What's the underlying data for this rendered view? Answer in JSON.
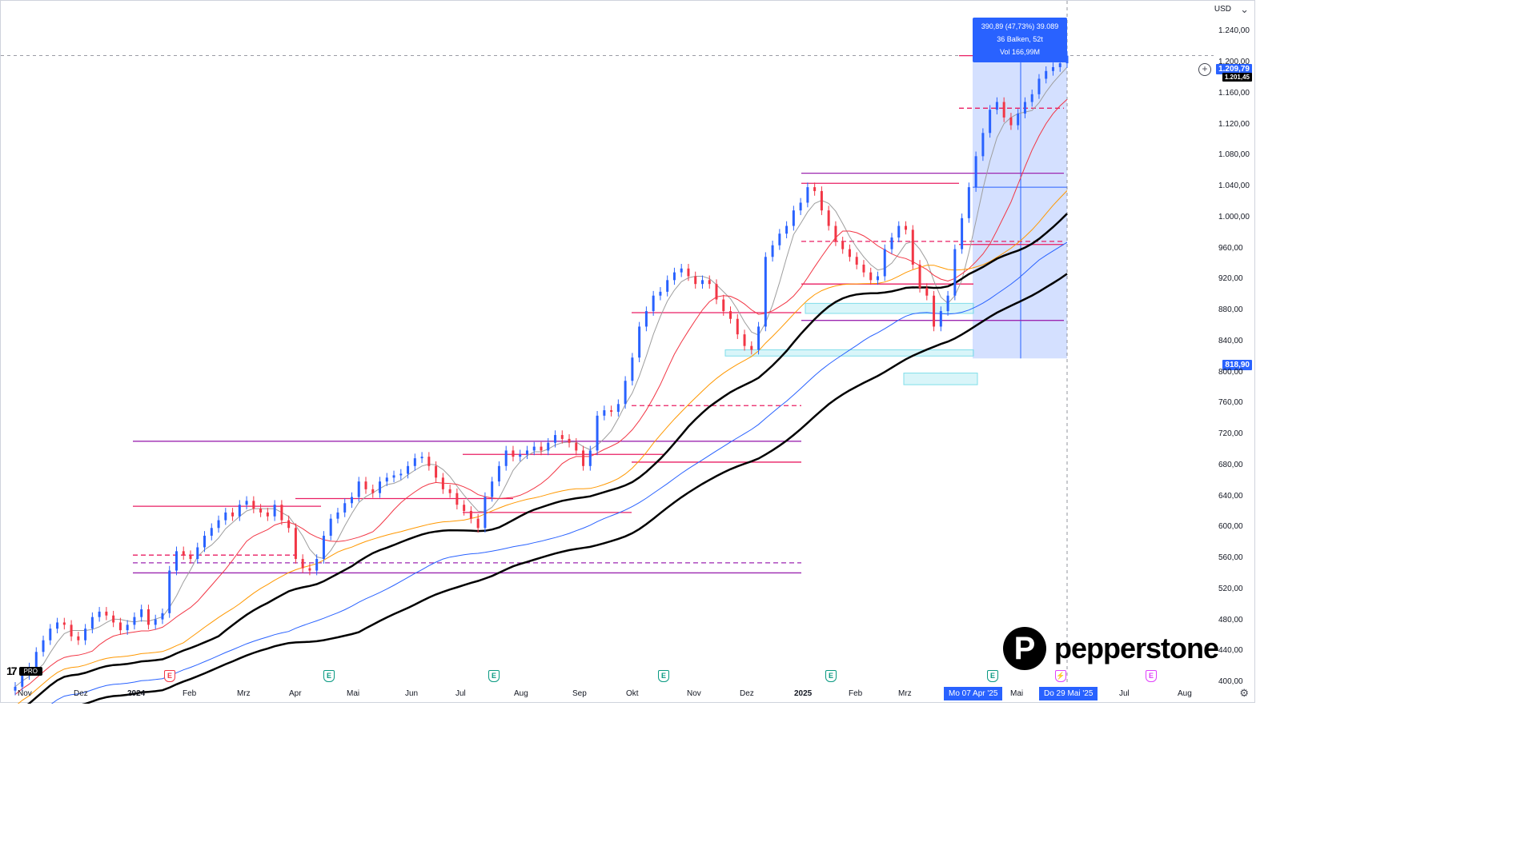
{
  "currency": "USD",
  "chart_data": {
    "type": "candlestick",
    "y_ticks": [
      "1.240,00",
      "1.200,00",
      "1.160,00",
      "1.120,00",
      "1.080,00",
      "1.040,00",
      "1.000,00",
      "960,00",
      "920,00",
      "880,00",
      "840,00",
      "800,00",
      "760,00",
      "720,00",
      "680,00",
      "640,00",
      "600,00",
      "560,00",
      "520,00",
      "480,00",
      "440,00",
      "400,00"
    ],
    "x_ticks": [
      "Nov",
      "Dez",
      "2024",
      "Feb",
      "Mrz",
      "Apr",
      "Mai",
      "Jun",
      "Jul",
      "Aug",
      "Sep",
      "Okt",
      "Nov",
      "Dez",
      "2025",
      "Feb",
      "Mrz",
      "Mai",
      "Jul",
      "Aug"
    ],
    "ylim": [
      400,
      1260
    ],
    "closes": [
      395,
      410,
      420,
      440,
      455,
      470,
      478,
      475,
      460,
      455,
      470,
      485,
      492,
      487,
      478,
      468,
      475,
      485,
      495,
      475,
      482,
      490,
      545,
      570,
      565,
      560,
      575,
      590,
      600,
      610,
      620,
      615,
      630,
      635,
      625,
      620,
      615,
      630,
      610,
      600,
      560,
      548,
      545,
      560,
      590,
      612,
      620,
      632,
      640,
      660,
      650,
      645,
      660,
      665,
      668,
      670,
      680,
      690,
      692,
      680,
      665,
      650,
      645,
      630,
      622,
      612,
      600,
      640,
      660,
      680,
      700,
      692,
      695,
      700,
      705,
      700,
      710,
      720,
      715,
      710,
      700,
      680,
      700,
      745,
      752,
      750,
      760,
      790,
      820,
      860,
      880,
      900,
      905,
      920,
      930,
      935,
      925,
      915,
      920,
      915,
      895,
      880,
      870,
      850,
      835,
      830,
      860,
      950,
      965,
      980,
      990,
      1010,
      1020,
      1040,
      1035,
      1010,
      990,
      970,
      960,
      950,
      940,
      930,
      920,
      925,
      960,
      975,
      990,
      985,
      940,
      910,
      900,
      860,
      880,
      900,
      960,
      1000,
      1040,
      1080,
      1110,
      1140,
      1150,
      1130,
      1120,
      1135,
      1150,
      1160,
      1180,
      1190,
      1195,
      1200,
      1209.79
    ],
    "current_price": "1.209,79",
    "current_price_overlap": "1.201,45",
    "low_marker": "818,90",
    "measure": {
      "line1": "390,89 (47,73%) 39.089",
      "line2": "36 Balken, 52t",
      "line3": "Vol 166,99M",
      "from": 818.9,
      "to": 1209.79
    },
    "horizontal_levels": [
      {
        "value": 712,
        "color": "#9c27b0",
        "dashed": false
      },
      {
        "value": 628,
        "color": "#e91e63",
        "dashed": false
      },
      {
        "value": 638,
        "color": "#e91e63",
        "dashed": false
      },
      {
        "value": 565,
        "color": "#e91e63",
        "dashed": true
      },
      {
        "value": 555,
        "color": "#9c27b0",
        "dashed": true
      },
      {
        "value": 542,
        "color": "#9c27b0",
        "dashed": false
      },
      {
        "value": 695,
        "color": "#e91e63",
        "dashed": false
      },
      {
        "value": 685,
        "color": "#e91e63",
        "dashed": false
      },
      {
        "value": 620,
        "color": "#e91e63",
        "dashed": false
      },
      {
        "value": 758,
        "color": "#e91e63",
        "dashed": true
      },
      {
        "value": 878,
        "color": "#e91e63",
        "dashed": false
      },
      {
        "value": 915,
        "color": "#e91e63",
        "dashed": false
      },
      {
        "value": 868,
        "color": "#9c27b0",
        "dashed": false
      },
      {
        "value": 1058,
        "color": "#9c27b0",
        "dashed": false
      },
      {
        "value": 1045,
        "color": "#e91e63",
        "dashed": false
      },
      {
        "value": 970,
        "color": "#e91e63",
        "dashed": true
      },
      {
        "value": 966,
        "color": "#e91e63",
        "dashed": false
      },
      {
        "value": 1209.79,
        "color": "#e91e63",
        "dashed": false
      },
      {
        "value": 1142,
        "color": "#e91e63",
        "dashed": true
      }
    ],
    "date_labels": {
      "start": "Mo 07 Apr '25",
      "end": "Do 29 Mai '25"
    },
    "event_markers": [
      {
        "label": "E",
        "color": "#f23645"
      },
      {
        "label": "E",
        "color": "#089981"
      },
      {
        "label": "E",
        "color": "#089981"
      },
      {
        "label": "E",
        "color": "#089981"
      },
      {
        "label": "E",
        "color": "#089981"
      },
      {
        "label": "E",
        "color": "#089981"
      },
      {
        "label": "⚡",
        "color": "#e040fb"
      },
      {
        "label": "E",
        "color": "#e040fb"
      }
    ]
  },
  "branding": {
    "tv": "17",
    "tv_badge": "PRO",
    "logo_letter": "P",
    "wordmark": "pepperstone"
  }
}
